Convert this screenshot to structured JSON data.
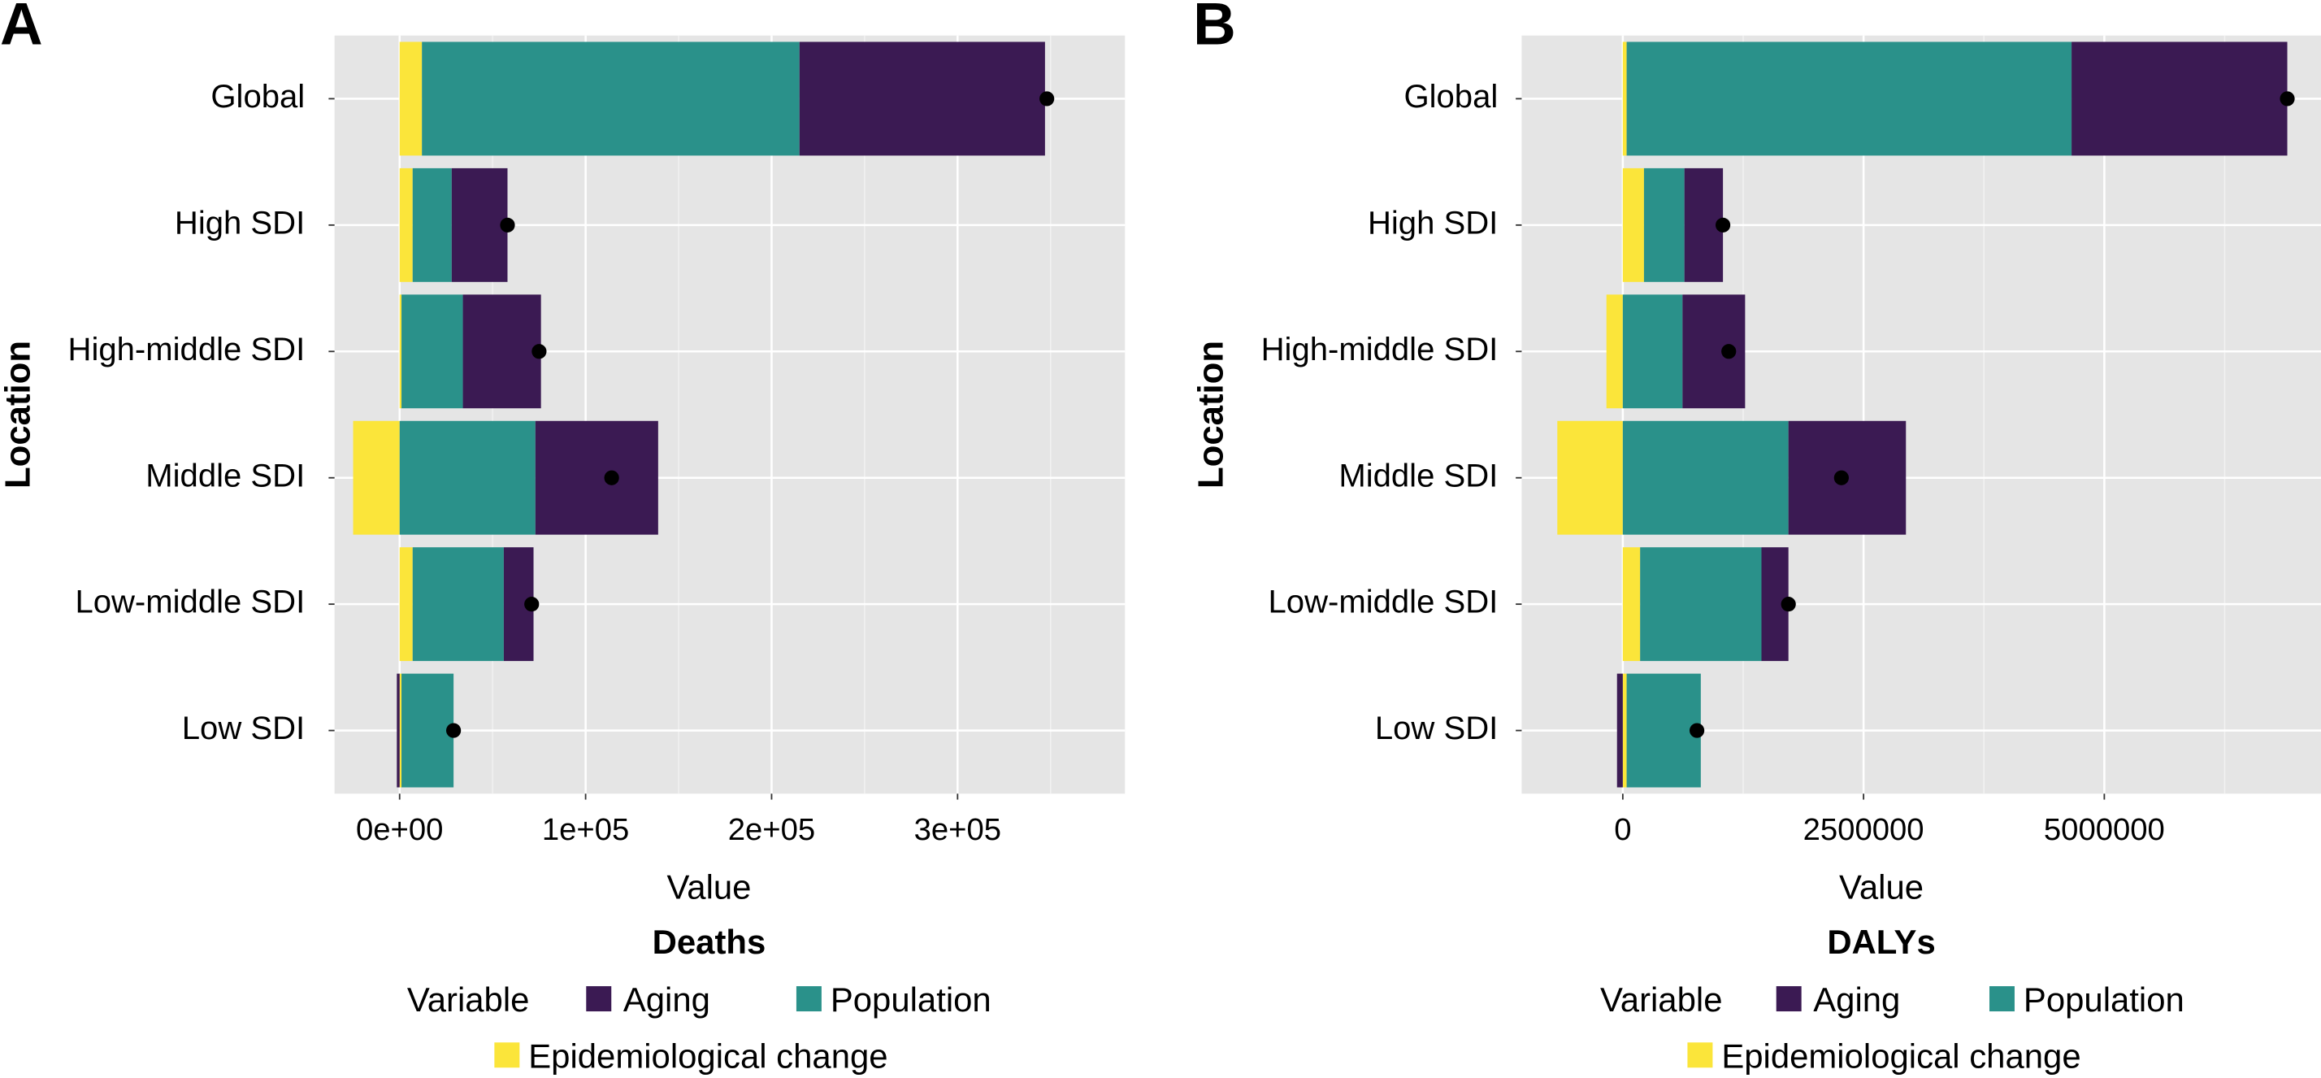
{
  "chart_data": [
    {
      "type": "bar",
      "orientation": "horizontal",
      "stacked": true,
      "panel_label": "A",
      "caption": "Deaths",
      "xlabel": "Value",
      "ylabel": "Location",
      "xlim": [
        -35000,
        390000
      ],
      "xticks": [
        0,
        100000,
        200000,
        300000
      ],
      "xtick_labels": [
        "0e+00",
        "1e+05",
        "2e+05",
        "3e+05"
      ],
      "grid": true,
      "categories": [
        "Global",
        "High SDI",
        "High-middle SDI",
        "Middle SDI",
        "Low-middle SDI",
        "Low SDI"
      ],
      "series": [
        {
          "name": "Epidemiological change",
          "values": [
            12000,
            7000,
            1000,
            -25000,
            7000,
            1000
          ]
        },
        {
          "name": "Population",
          "values": [
            203000,
            21000,
            33000,
            73000,
            49000,
            28000
          ]
        },
        {
          "name": "Aging",
          "values": [
            132000,
            30000,
            42000,
            66000,
            16000,
            -1500
          ]
        }
      ],
      "totals": [
        348000,
        58000,
        75000,
        114000,
        71000,
        29000
      ],
      "legend": {
        "title": "Variable",
        "position": "bottom"
      }
    },
    {
      "type": "bar",
      "orientation": "horizontal",
      "stacked": true,
      "panel_label": "B",
      "caption": "DALYs",
      "xlabel": "Value",
      "ylabel": "Location",
      "xlim": [
        -1050000,
        7250000
      ],
      "xticks": [
        0,
        2500000,
        5000000
      ],
      "xtick_labels": [
        "0",
        "2500000",
        "5000000"
      ],
      "grid": true,
      "categories": [
        "Global",
        "High SDI",
        "High-middle SDI",
        "Middle SDI",
        "Low-middle SDI",
        "Low SDI"
      ],
      "series": [
        {
          "name": "Epidemiological change",
          "values": [
            40000,
            220000,
            -170000,
            -680000,
            180000,
            40000
          ]
        },
        {
          "name": "Population",
          "values": [
            4620000,
            420000,
            620000,
            1720000,
            1260000,
            770000
          ]
        },
        {
          "name": "Aging",
          "values": [
            2240000,
            400000,
            650000,
            1220000,
            280000,
            -60000
          ]
        }
      ],
      "totals": [
        6900000,
        1040000,
        1100000,
        2270000,
        1720000,
        770000
      ],
      "legend": {
        "title": "Variable",
        "position": "bottom"
      }
    }
  ],
  "legend": {
    "title": "Variable",
    "items": [
      {
        "name": "Aging",
        "color": "#3b1a53"
      },
      {
        "name": "Population",
        "color": "#2a918a"
      },
      {
        "name": "Epidemiological change",
        "color": "#fbe53a"
      }
    ]
  },
  "colors": {
    "Aging": "#3b1a53",
    "Population": "#2a918a",
    "Epidemiological change": "#fbe53a",
    "panel_bg": "#e5e5e5",
    "grid": "#ffffff",
    "dot": "#000000"
  }
}
